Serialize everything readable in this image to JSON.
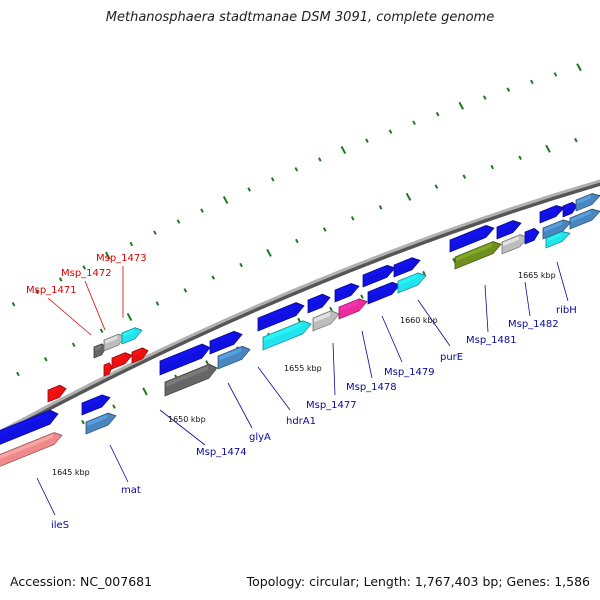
{
  "header": {
    "title": "Methanosphaera stadtmanae DSM 3091, complete genome"
  },
  "footer": {
    "accession": "Accession: NC_007681",
    "summary": "Topology: circular; Length: 1,767,403 bp; Genes: 1,586"
  },
  "colors": {
    "backbone": "#8c8c8c",
    "tick": "#1e7a1e",
    "label_highlight": "#dd0000",
    "label_normal": "#0a0a9a",
    "gene_blue": "#1010e0",
    "gene_red": "#ee1010",
    "gene_steel": "#4a86bf",
    "gene_cyan": "#22e4ee",
    "gene_gray": "#bdbdbd",
    "gene_dark": "#666666",
    "gene_pink": "#ee2c9c",
    "gene_olive": "#6f8f1f",
    "gene_salmon": "#f08a8a"
  },
  "scale_labels": [
    "1645 kbp",
    "1650 kbp",
    "1655 kbp",
    "1660 kbp",
    "1665 kbp"
  ],
  "gene_labels": [
    {
      "text": "Msp_1473",
      "highlight": true
    },
    {
      "text": "Msp_1472",
      "highlight": true
    },
    {
      "text": "Msp_1471",
      "highlight": true
    },
    {
      "text": "ileS",
      "highlight": false
    },
    {
      "text": "mat",
      "highlight": false
    },
    {
      "text": "Msp_1474",
      "highlight": false
    },
    {
      "text": "glyA",
      "highlight": false
    },
    {
      "text": "hdrA1",
      "highlight": false
    },
    {
      "text": "Msp_1477",
      "highlight": false
    },
    {
      "text": "Msp_1478",
      "highlight": false
    },
    {
      "text": "Msp_1479",
      "highlight": false
    },
    {
      "text": "purE",
      "highlight": false
    },
    {
      "text": "Msp_1481",
      "highlight": false
    },
    {
      "text": "Msp_1482",
      "highlight": false
    },
    {
      "text": "ribH",
      "highlight": false
    }
  ],
  "features": [
    {
      "color": "gene_blue",
      "strand": "+"
    },
    {
      "color": "gene_salmon",
      "strand": "+"
    },
    {
      "color": "gene_red",
      "strand": "+"
    },
    {
      "color": "gene_blue",
      "strand": "+"
    },
    {
      "color": "gene_steel",
      "strand": "+"
    },
    {
      "color": "gene_dark",
      "strand": "+"
    },
    {
      "color": "gene_gray",
      "strand": "+"
    },
    {
      "color": "gene_cyan",
      "strand": "+"
    },
    {
      "color": "gene_red",
      "strand": "+"
    },
    {
      "color": "gene_red",
      "strand": "+"
    },
    {
      "color": "gene_red",
      "strand": "+"
    },
    {
      "color": "gene_blue",
      "strand": "+"
    },
    {
      "color": "gene_dark",
      "strand": "+"
    },
    {
      "color": "gene_blue",
      "strand": "+"
    },
    {
      "color": "gene_steel",
      "strand": "+"
    },
    {
      "color": "gene_blue",
      "strand": "+"
    },
    {
      "color": "gene_cyan",
      "strand": "+"
    },
    {
      "color": "gene_blue",
      "strand": "+"
    },
    {
      "color": "gene_gray",
      "strand": "+"
    },
    {
      "color": "gene_blue",
      "strand": "+"
    },
    {
      "color": "gene_pink",
      "strand": "+"
    },
    {
      "color": "gene_blue",
      "strand": "+"
    },
    {
      "color": "gene_blue",
      "strand": "+"
    },
    {
      "color": "gene_blue",
      "strand": "+"
    },
    {
      "color": "gene_cyan",
      "strand": "+"
    },
    {
      "color": "gene_blue",
      "strand": "+"
    },
    {
      "color": "gene_olive",
      "strand": "+"
    },
    {
      "color": "gene_blue",
      "strand": "+"
    },
    {
      "color": "gene_gray",
      "strand": "+"
    },
    {
      "color": "gene_blue",
      "strand": "+"
    },
    {
      "color": "gene_blue",
      "strand": "+"
    },
    {
      "color": "gene_steel",
      "strand": "+"
    },
    {
      "color": "gene_cyan",
      "strand": "+"
    },
    {
      "color": "gene_blue",
      "strand": "+"
    },
    {
      "color": "gene_steel",
      "strand": "+"
    },
    {
      "color": "gene_steel",
      "strand": "+"
    }
  ]
}
